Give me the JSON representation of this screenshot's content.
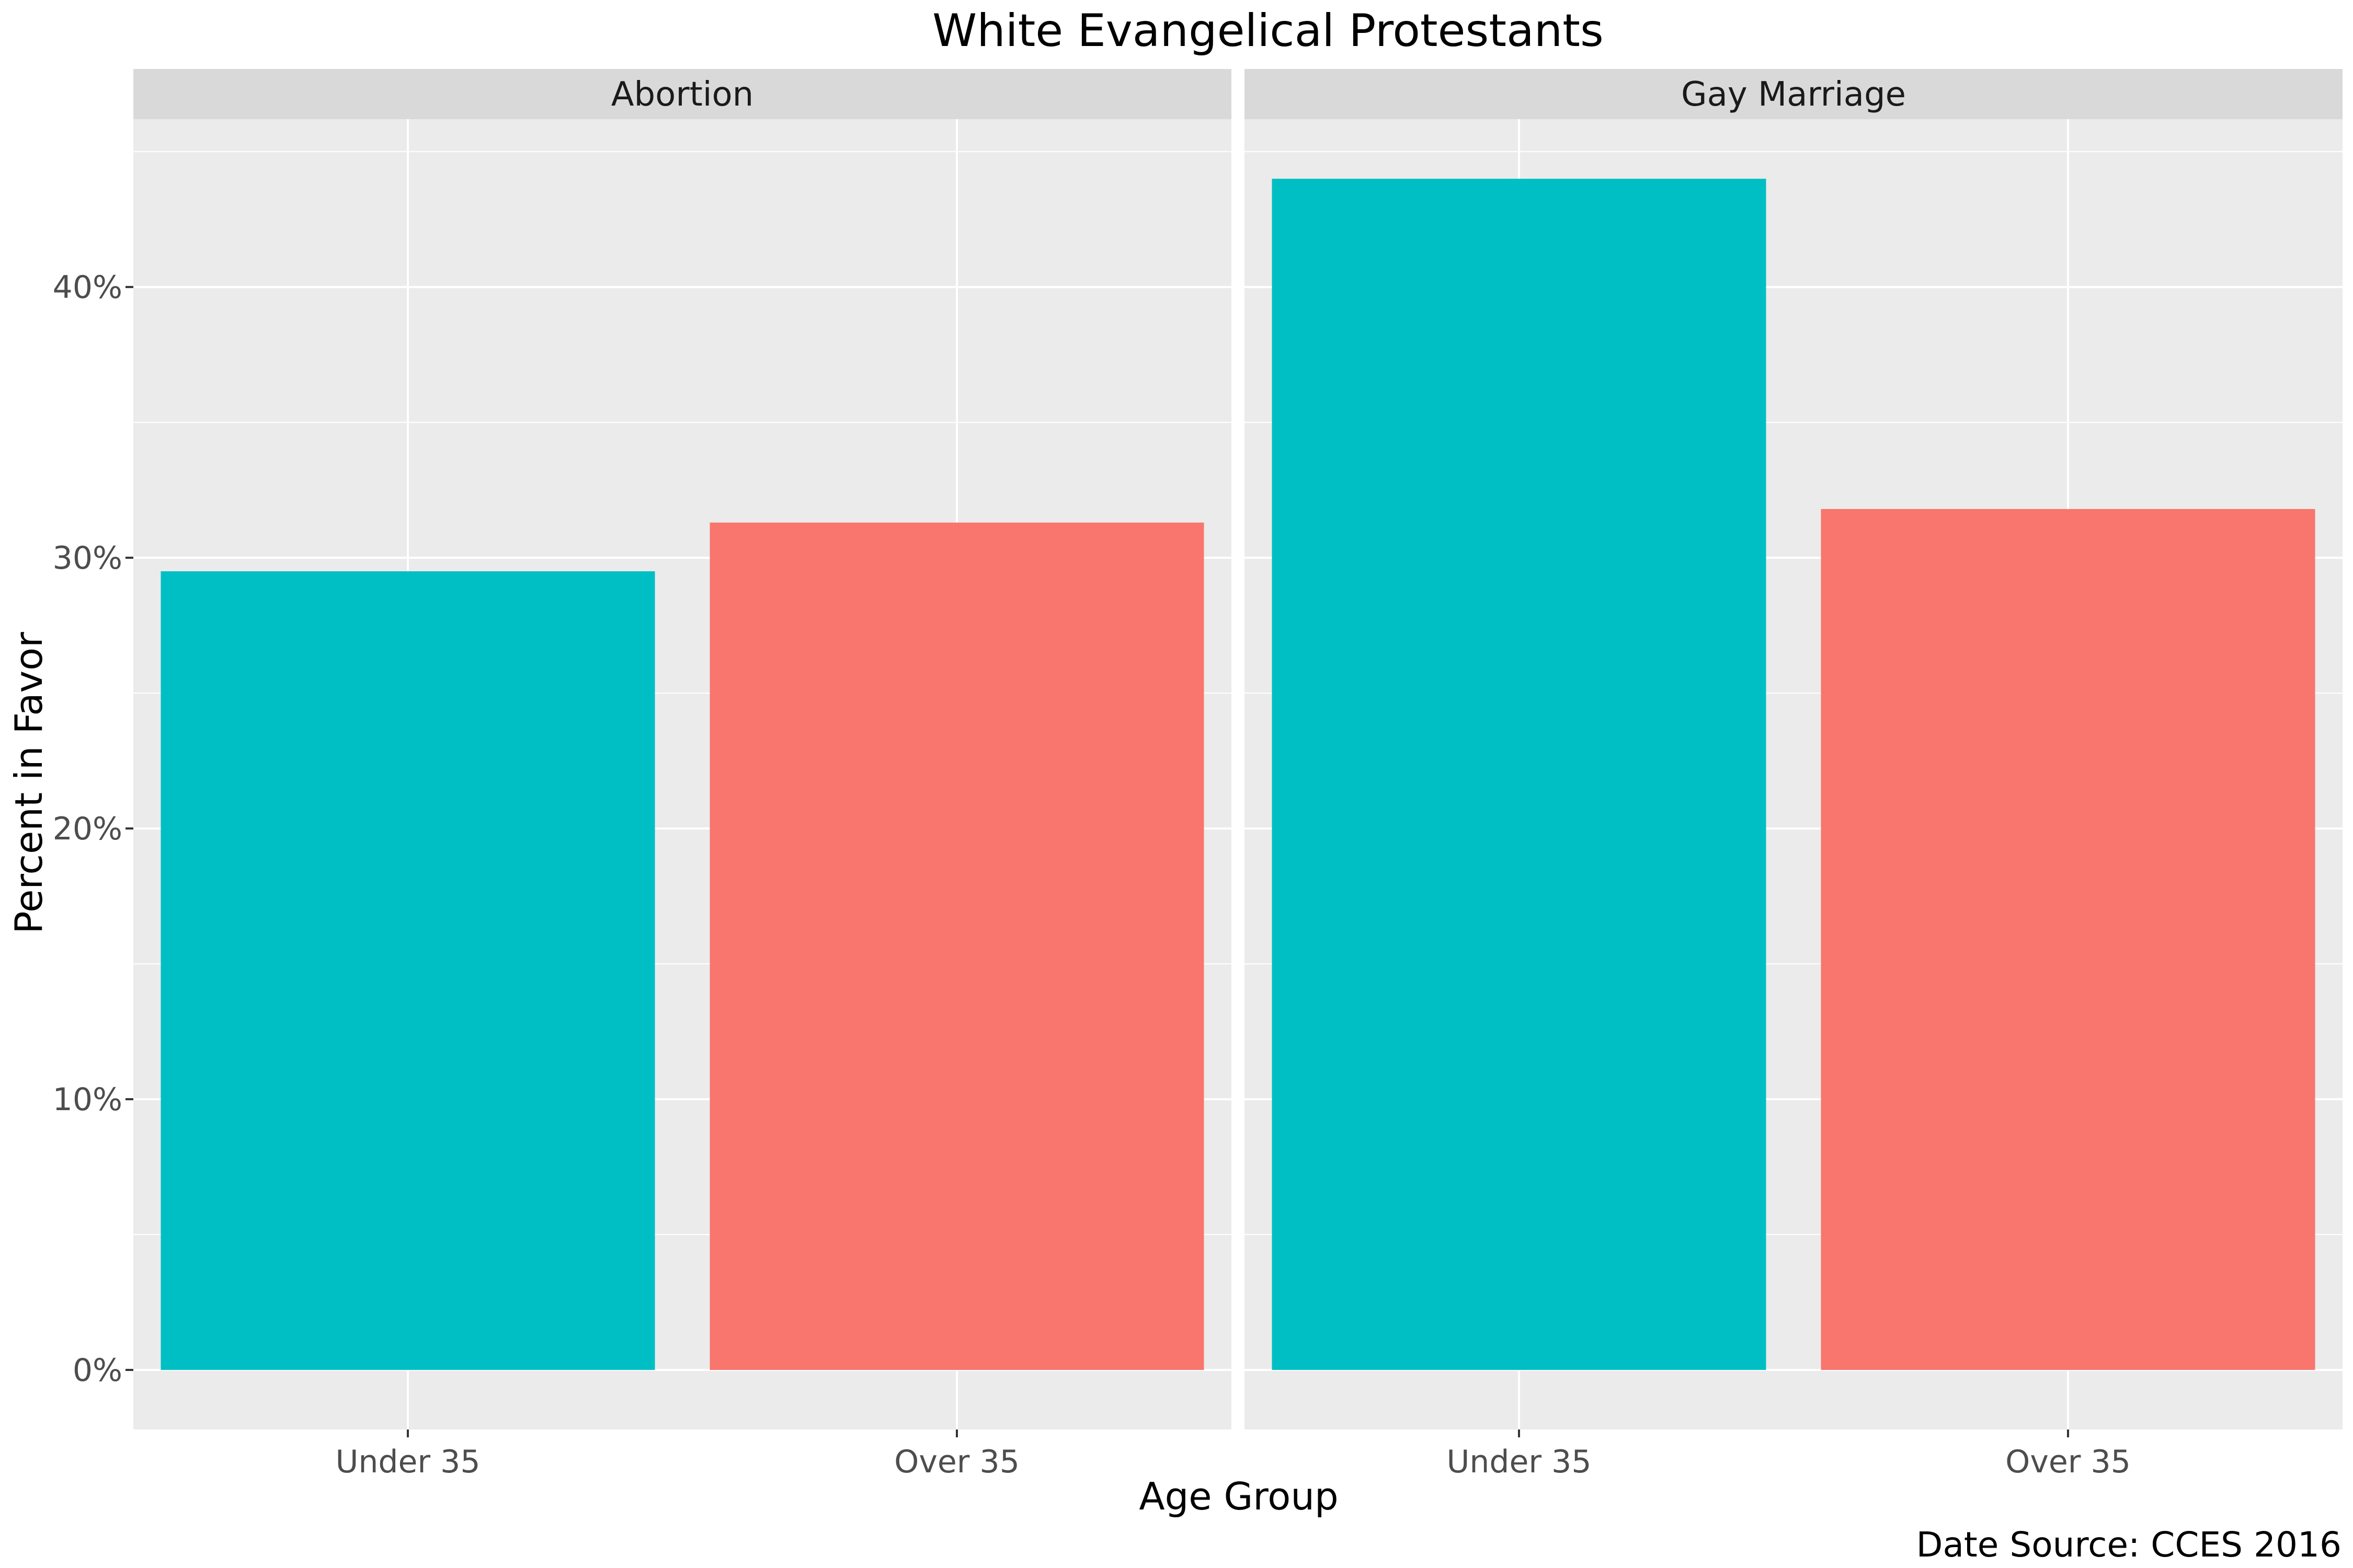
{
  "chart_data": {
    "type": "bar",
    "title": "White Evangelical Protestants",
    "xlabel": "Age Group",
    "ylabel": "Percent in Favor",
    "caption": "Date Source: CCES 2016",
    "categories": [
      "Under 35",
      "Over 35"
    ],
    "ylim": [
      -2.2,
      46.2
    ],
    "yticks": [
      0,
      10,
      20,
      30,
      40
    ],
    "ytick_labels": [
      "0%",
      "10%",
      "20%",
      "30%",
      "40%"
    ],
    "grid": true,
    "legend": "none",
    "colors": {
      "Under 35": "#00BFC4",
      "Over 35": "#F8766D",
      "panel_bg": "#EBEBEB",
      "strip_bg": "#D9D9D9",
      "grid": "#FFFFFF"
    },
    "panels": [
      {
        "label": "Abortion",
        "values": [
          29.5,
          31.3
        ]
      },
      {
        "label": "Gay Marriage",
        "values": [
          44.0,
          31.8
        ]
      }
    ]
  }
}
